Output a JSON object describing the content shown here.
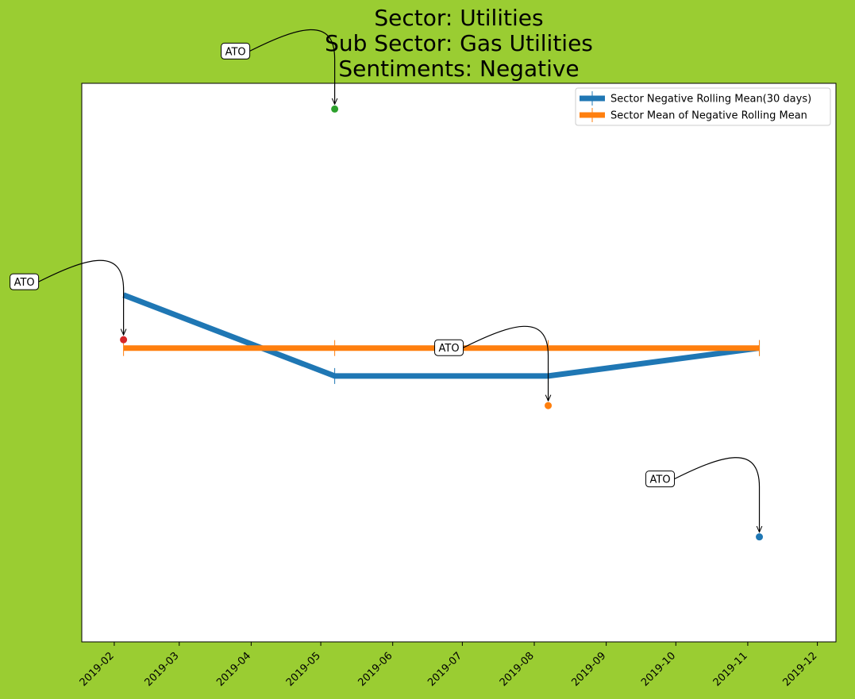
{
  "chart_data": {
    "type": "line",
    "title_lines": [
      "Sector:  Utilities",
      "Sub Sector:  Gas Utilities",
      "Sentiments:  Negative"
    ],
    "xlabel": "",
    "ylabel": "",
    "x_ticks": [
      "2019-02",
      "2019-03",
      "2019-04",
      "2019-05",
      "2019-06",
      "2019-07",
      "2019-08",
      "2019-09",
      "2019-10",
      "2019-11",
      "2019-12"
    ],
    "x_range": [
      "2019-01-18",
      "2019-12-09"
    ],
    "y_ticks_shown": false,
    "y_range": [
      0,
      1
    ],
    "grid": false,
    "legend_placement": "top-right",
    "series": [
      {
        "name": "Sector Negative Rolling Mean(30 days)",
        "color": "#1f77b4",
        "x": [
          "2019-02-05",
          "2019-05-07",
          "2019-08-07",
          "2019-11-06"
        ],
        "y": [
          0.621,
          0.476,
          0.476,
          0.526
        ]
      },
      {
        "name": "Sector Mean of Negative Rolling Mean",
        "color": "#ff7f0e",
        "x": [
          "2019-02-05",
          "2019-05-07",
          "2019-08-07",
          "2019-11-06"
        ],
        "y": [
          0.526,
          0.526,
          0.526,
          0.526
        ]
      }
    ],
    "points": [
      {
        "x": "2019-02-05",
        "y": 0.541,
        "color": "#d62728"
      },
      {
        "x": "2019-05-07",
        "y": 0.954,
        "color": "#2ca02c"
      },
      {
        "x": "2019-08-07",
        "y": 0.423,
        "color": "#ff7f0e"
      },
      {
        "x": "2019-11-06",
        "y": 0.188,
        "color": "#1f77b4"
      }
    ],
    "annotations": [
      {
        "text": "ATO",
        "point": 0
      },
      {
        "text": "ATO",
        "point": 1
      },
      {
        "text": "ATO",
        "point": 2
      },
      {
        "text": "ATO",
        "point": 3
      }
    ]
  }
}
